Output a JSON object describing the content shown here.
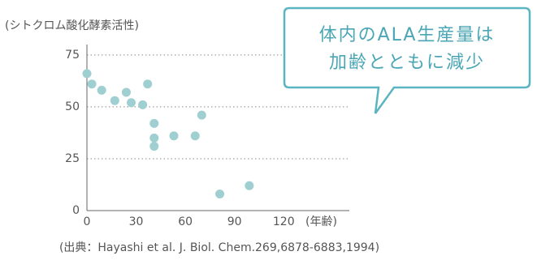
{
  "chart_data": {
    "type": "scatter",
    "y_label": "(シトクロム酸化酵素活性)",
    "x_label": "(年齢)",
    "source": "(出典：Hayashi et al. J. Biol. Chem.269,6878-6883,1994)",
    "annotations": [
      "体内のALA生産量は",
      "加齢とともに減少"
    ],
    "x": [
      0,
      3,
      9,
      17,
      24,
      27,
      34,
      37,
      41,
      41,
      41,
      53,
      66,
      70,
      81,
      99
    ],
    "values": [
      66,
      61,
      58,
      53,
      57,
      52,
      51,
      61,
      42,
      35,
      31,
      36,
      36,
      46,
      8,
      12
    ],
    "color": "#9fcfd1",
    "xlim": [
      0,
      160
    ],
    "xticks": [
      0,
      30,
      60,
      90,
      120
    ],
    "ylim": [
      0,
      80
    ],
    "yticks": [
      0,
      25,
      50,
      75
    ],
    "grid": true
  }
}
